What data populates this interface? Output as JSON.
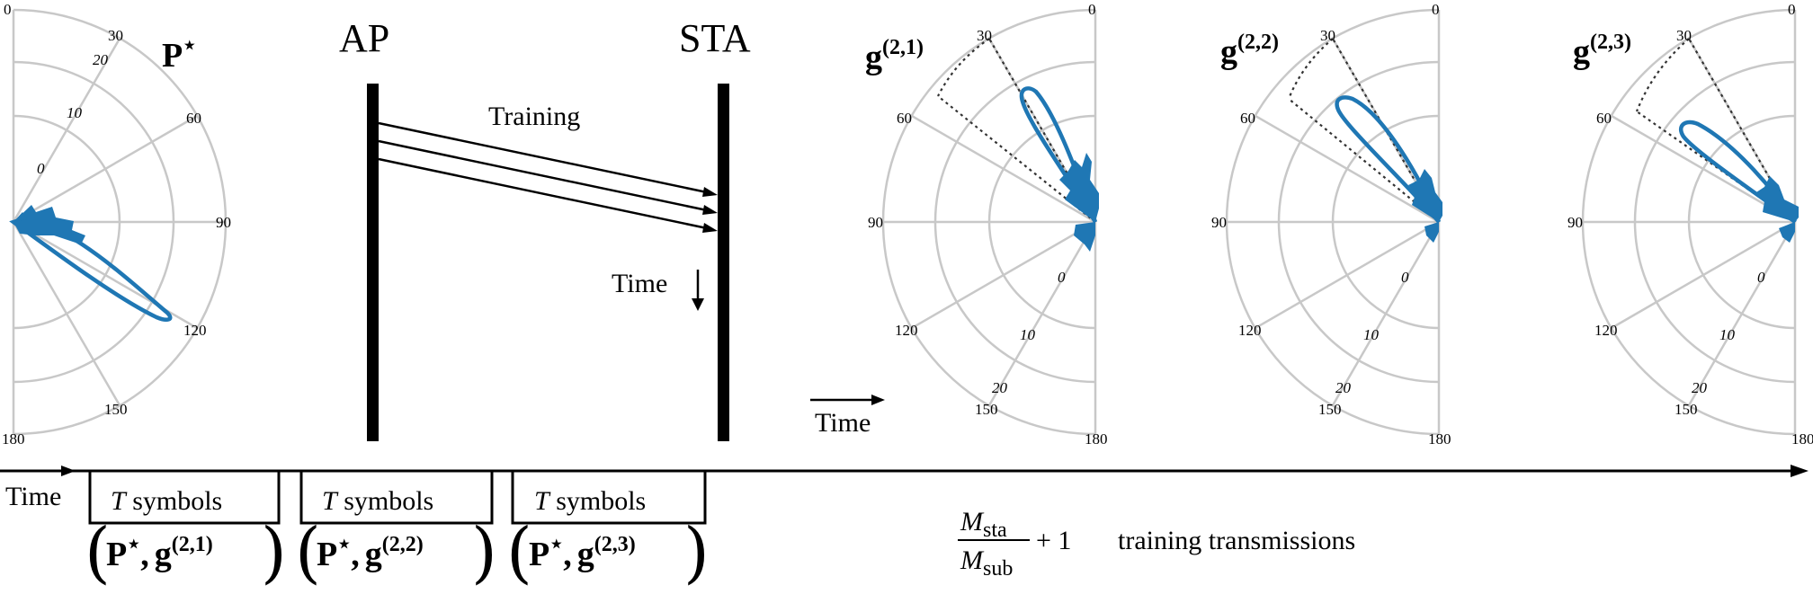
{
  "polar_ticks": {
    "angles_left": [
      "0",
      "30",
      "60",
      "90",
      "120",
      "150",
      "180"
    ],
    "angles_right": [
      "0",
      "30",
      "60",
      "90",
      "120",
      "150",
      "180"
    ],
    "radial_p": [
      "20",
      "10",
      "0"
    ],
    "radial_g": [
      "0",
      "10",
      "20"
    ]
  },
  "plot_labels": {
    "p_star": "P",
    "p_star_sup": "⋆",
    "g": "g",
    "g21_sup": "(2,1)",
    "g22_sup": "(2,2)",
    "g23_sup": "(2,3)"
  },
  "sequence": {
    "ap": "AP",
    "sta": "STA",
    "training": "Training",
    "time": "Time",
    "down_arrow": "↓"
  },
  "mid_time": "Time",
  "timeline": {
    "time": "Time",
    "box1": {
      "t": "T",
      "rest": " symbols",
      "p": "P",
      "star": "⋆",
      "comma": ",",
      "g": "g",
      "sup": "(2,1)"
    },
    "box2": {
      "t": "T",
      "rest": " symbols",
      "p": "P",
      "star": "⋆",
      "comma": ",",
      "g": "g",
      "sup": "(2,2)"
    },
    "box3": {
      "t": "T",
      "rest": " symbols",
      "p": "P",
      "star": "⋆",
      "comma": ",",
      "g": "g",
      "sup": "(2,3)"
    },
    "frac_num": "M",
    "frac_num_sub": "sta",
    "frac_den": "M",
    "frac_den_sub": "sub",
    "plus_one": "+ 1",
    "transmissions": "training transmissions",
    "lparen": "(",
    "rparen": ")"
  }
}
